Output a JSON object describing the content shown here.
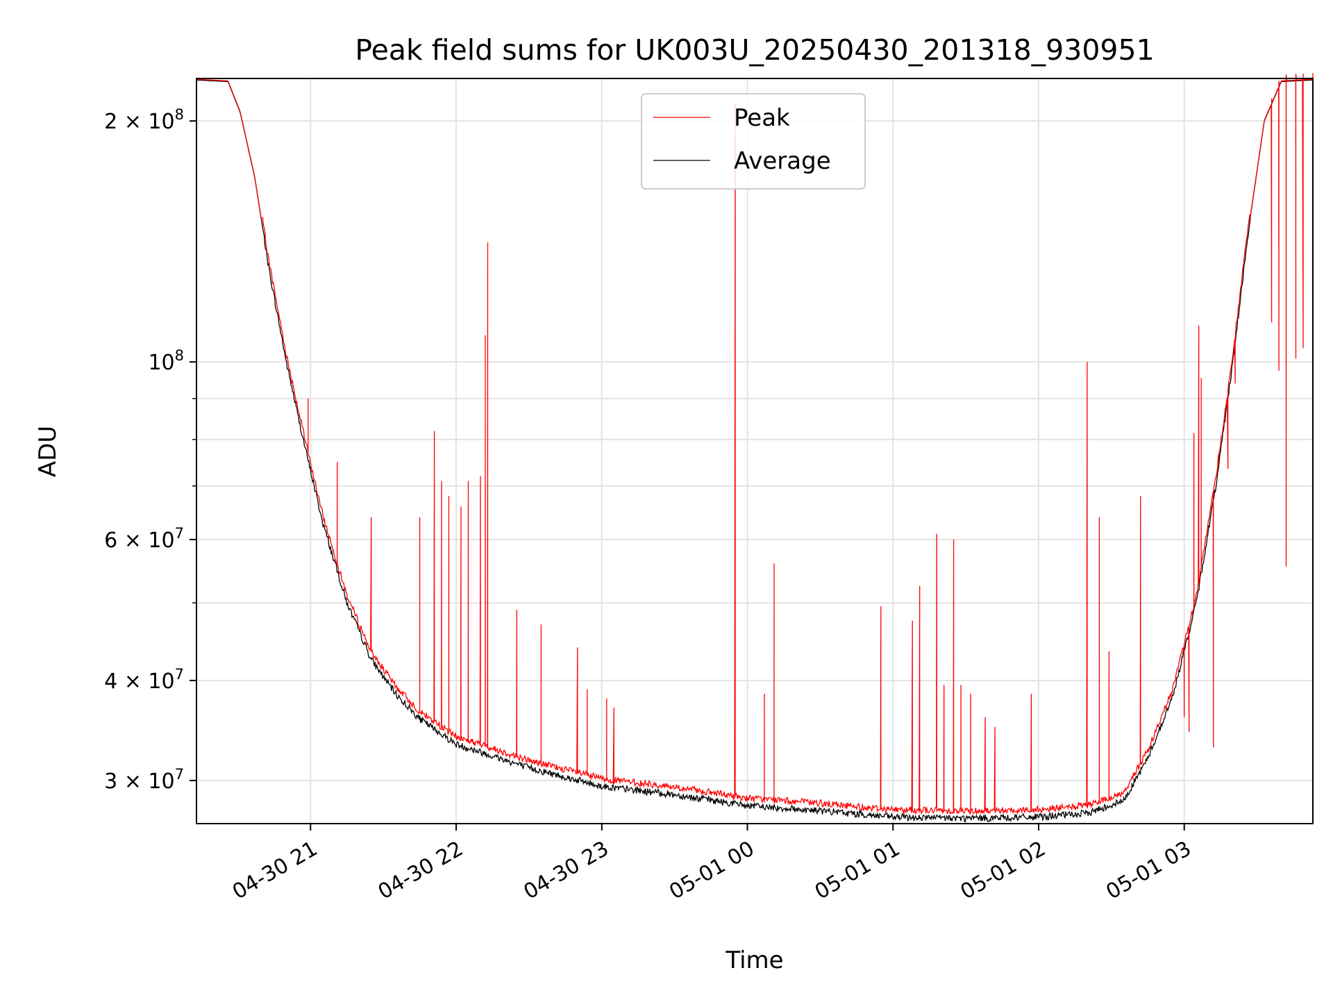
{
  "chart_data": {
    "type": "line",
    "title": "Peak field sums for UK003U_20250430_201318_930951",
    "xlabel": "Time",
    "ylabel": "ADU",
    "y_scale": "log",
    "xlim": [
      "2025-04-30 20:13",
      "2025-05-01 03:53"
    ],
    "ylim": [
      26500000,
      226000000
    ],
    "x_ticks": [
      "04-30 21",
      "04-30 22",
      "04-30 23",
      "05-01 00",
      "05-01 01",
      "05-01 02",
      "05-01 03"
    ],
    "x_tick_values": [
      "2025-04-30 21:00",
      "2025-04-30 22:00",
      "2025-04-30 23:00",
      "2025-05-01 00:00",
      "2025-05-01 01:00",
      "2025-05-01 02:00",
      "2025-05-01 03:00"
    ],
    "y_ticks": [
      {
        "value": 200000000,
        "mantissa": "2",
        "exp": "8"
      },
      {
        "value": 100000000,
        "mantissa": "",
        "exp": "8"
      },
      {
        "value": 60000000,
        "mantissa": "6",
        "exp": "7"
      },
      {
        "value": 40000000,
        "mantissa": "4",
        "exp": "7"
      },
      {
        "value": 30000000,
        "mantissa": "3",
        "exp": "7"
      }
    ],
    "y_minor_gridlines": [
      90000000,
      80000000,
      70000000,
      50000000
    ],
    "grid": true,
    "legend": {
      "position": "top-center",
      "entries": [
        "Peak",
        "Average"
      ]
    },
    "series": [
      {
        "name": "Average",
        "color": "#000000",
        "x": [
          "2025-04-30 20:13",
          "2025-04-30 20:26",
          "2025-04-30 20:31",
          "2025-04-30 20:37",
          "2025-04-30 20:43",
          "2025-04-30 20:50",
          "2025-04-30 20:57",
          "2025-04-30 21:05",
          "2025-04-30 21:15",
          "2025-04-30 21:25",
          "2025-04-30 21:35",
          "2025-04-30 21:45",
          "2025-04-30 22:00",
          "2025-04-30 22:15",
          "2025-04-30 22:30",
          "2025-04-30 22:45",
          "2025-04-30 23:00",
          "2025-04-30 23:30",
          "2025-05-01 00:00",
          "2025-05-01 00:30",
          "2025-05-01 01:00",
          "2025-05-01 01:30",
          "2025-05-01 02:00",
          "2025-05-01 02:20",
          "2025-05-01 02:35",
          "2025-05-01 02:45",
          "2025-05-01 02:55",
          "2025-05-01 03:05",
          "2025-05-01 03:13",
          "2025-05-01 03:20",
          "2025-05-01 03:27",
          "2025-05-01 03:33",
          "2025-05-01 03:40",
          "2025-05-01 03:53"
        ],
        "values": [
          225000000,
          224000000,
          205000000,
          170000000,
          130000000,
          100000000,
          80000000,
          63000000,
          50000000,
          42500000,
          38500000,
          35800000,
          33300000,
          32200000,
          31100000,
          30300000,
          29500000,
          28800000,
          27900000,
          27500000,
          27000000,
          26900000,
          27000000,
          27300000,
          28300000,
          32000000,
          38000000,
          50000000,
          70000000,
          100000000,
          150000000,
          200000000,
          224000000,
          225000000
        ]
      },
      {
        "name": "Peak",
        "color": "#ff0000",
        "spikes": [
          {
            "x": "2025-04-30 20:59",
            "y": 90000000
          },
          {
            "x": "2025-04-30 21:11",
            "y": 75000000
          },
          {
            "x": "2025-04-30 21:25",
            "y": 64000000
          },
          {
            "x": "2025-04-30 21:45",
            "y": 64000000
          },
          {
            "x": "2025-04-30 21:51",
            "y": 82000000
          },
          {
            "x": "2025-04-30 21:54",
            "y": 71000000
          },
          {
            "x": "2025-04-30 21:57",
            "y": 68000000
          },
          {
            "x": "2025-04-30 22:02",
            "y": 66000000
          },
          {
            "x": "2025-04-30 22:05",
            "y": 71000000
          },
          {
            "x": "2025-04-30 22:10",
            "y": 72000000
          },
          {
            "x": "2025-04-30 22:12",
            "y": 108000000
          },
          {
            "x": "2025-04-30 22:13",
            "y": 141000000
          },
          {
            "x": "2025-04-30 22:25",
            "y": 49000000
          },
          {
            "x": "2025-04-30 22:35",
            "y": 47000000
          },
          {
            "x": "2025-04-30 22:50",
            "y": 44000000
          },
          {
            "x": "2025-04-30 22:54",
            "y": 39000000
          },
          {
            "x": "2025-04-30 23:02",
            "y": 38000000
          },
          {
            "x": "2025-04-30 23:05",
            "y": 37000000
          },
          {
            "x": "2025-04-30 23:55",
            "y": 210000000
          },
          {
            "x": "2025-05-01 00:07",
            "y": 38500000
          },
          {
            "x": "2025-05-01 00:11",
            "y": 56000000
          },
          {
            "x": "2025-05-01 00:55",
            "y": 49500000
          },
          {
            "x": "2025-05-01 01:08",
            "y": 47500000
          },
          {
            "x": "2025-05-01 01:11",
            "y": 52500000
          },
          {
            "x": "2025-05-01 01:18",
            "y": 61000000
          },
          {
            "x": "2025-05-01 01:21",
            "y": 39500000
          },
          {
            "x": "2025-05-01 01:25",
            "y": 60000000
          },
          {
            "x": "2025-05-01 01:28",
            "y": 39500000
          },
          {
            "x": "2025-05-01 01:32",
            "y": 38500000
          },
          {
            "x": "2025-05-01 01:38",
            "y": 36000000
          },
          {
            "x": "2025-05-01 01:42",
            "y": 35000000
          },
          {
            "x": "2025-05-01 01:57",
            "y": 38500000
          },
          {
            "x": "2025-05-01 02:20",
            "y": 100000000
          },
          {
            "x": "2025-05-01 02:25",
            "y": 64000000
          },
          {
            "x": "2025-05-01 02:29",
            "y": 43500000
          },
          {
            "x": "2025-05-01 02:42",
            "y": 68000000
          },
          {
            "x": "2025-05-01 03:00",
            "y": 36000000
          },
          {
            "x": "2025-05-01 03:02",
            "y": 34500000
          },
          {
            "x": "2025-05-01 03:04",
            "y": 81500000
          },
          {
            "x": "2025-05-01 03:06",
            "y": 111000000
          },
          {
            "x": "2025-05-01 03:07",
            "y": 95500000
          },
          {
            "x": "2025-05-01 03:12",
            "y": 33000000
          },
          {
            "x": "2025-05-01 03:14",
            "y": 76500000
          },
          {
            "x": "2025-05-01 03:18",
            "y": 73500000
          },
          {
            "x": "2025-05-01 03:21",
            "y": 94000000
          },
          {
            "x": "2025-05-01 03:36",
            "y": 112000000
          },
          {
            "x": "2025-05-01 03:39",
            "y": 97500000
          },
          {
            "x": "2025-05-01 03:42",
            "y": 55500000
          },
          {
            "x": "2025-05-01 03:46",
            "y": 101000000
          },
          {
            "x": "2025-05-01 03:49",
            "y": 104000000
          },
          {
            "x": "2025-05-01 03:53",
            "y": 96000000
          }
        ]
      }
    ]
  }
}
